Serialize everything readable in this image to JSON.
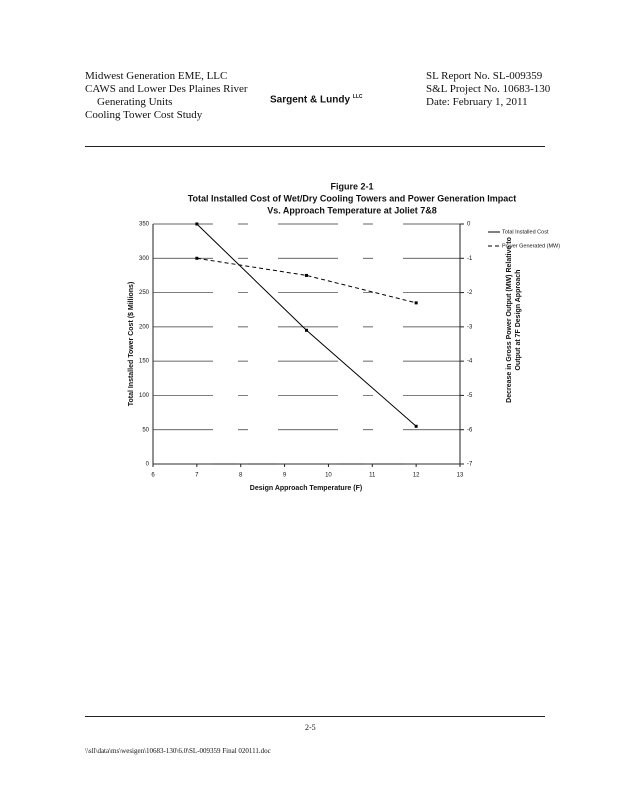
{
  "header": {
    "left": [
      "Midwest Generation EME, LLC",
      "CAWS and Lower Des Plaines River",
      "Generating Units",
      "Cooling Tower Cost Study"
    ],
    "logo": "Sargent & Lundy",
    "logo_mark": "LLC",
    "right": [
      "SL Report No. SL-009359",
      "S&L Project No. 10683-130",
      "Date: February 1, 2011"
    ]
  },
  "chart_data": {
    "type": "line",
    "figure": "Figure 2-1",
    "title": "Total Installed Cost of Wet/Dry Cooling Towers and Power Generation Impact",
    "subtitle": "Vs. Approach Temperature at Joliet 7&8",
    "x_label": "Design Approach Temperature (F)",
    "y_label": "Total Installed Tower Cost ($ Millions)",
    "y2_label": "Decrease in Gross Power Output (MW) Relative to Output at 7F Design Approach",
    "x": [
      7,
      9.5,
      12
    ],
    "series": [
      {
        "name": "Total Installed Cost",
        "color": "#000000",
        "values": [
          350,
          195,
          55
        ]
      },
      {
        "name": "Power Generated (MW)",
        "color": "#000000",
        "values": [
          -1,
          -1.5,
          -2.3
        ],
        "axis": "y2"
      }
    ],
    "xlim": [
      6,
      13
    ],
    "xticks": [
      6,
      7,
      8,
      9,
      10,
      11,
      12,
      13
    ],
    "ylim": [
      0,
      350
    ],
    "yticks": [
      0,
      50,
      100,
      150,
      200,
      250,
      300,
      350
    ],
    "y2lim": [
      -7,
      0
    ],
    "y2ticks": [
      0,
      -1,
      -2,
      -3,
      -4,
      -5,
      -6,
      -7
    ],
    "grid": true,
    "legend": "upper right"
  },
  "footer": {
    "page": "2-5",
    "path": "\\\\sll\\data\\ms\\wesigen\\10683-130\\6.0\\SL-009359 Final 020111.doc"
  }
}
